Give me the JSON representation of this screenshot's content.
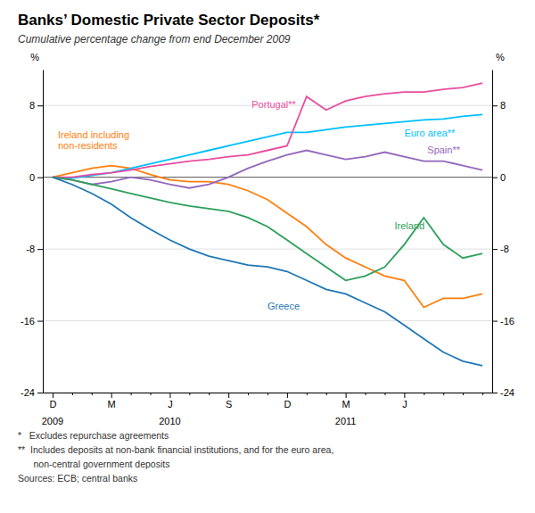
{
  "chart_data": {
    "type": "line",
    "title": "Banks’ Domestic Private Sector Deposits*",
    "subtitle": "Cumulative percentage change from end December 2009",
    "ylabel": "%",
    "y2label": "%",
    "categories": [
      "D",
      null,
      null,
      "M",
      null,
      null,
      "J",
      null,
      null,
      "S",
      null,
      null,
      "D",
      null,
      null,
      "M",
      null,
      null,
      "J",
      null,
      null,
      null,
      null
    ],
    "annotations": [
      {
        "text": "2009",
        "x": 0
      },
      {
        "text": "2010",
        "x": 6
      },
      {
        "text": "2011",
        "x": 15
      }
    ],
    "ylim": [
      -24,
      12
    ],
    "yticks": [
      -24,
      -16,
      -8,
      0,
      8
    ],
    "y2lim": [
      -24,
      12
    ],
    "y2ticks": [
      -24,
      -16,
      -8,
      0,
      8
    ],
    "grid": true,
    "series": [
      {
        "name": "Ireland including\nnon-residents",
        "color": "#ff7f0e",
        "values": [
          0,
          0.5,
          1.0,
          1.3,
          1.0,
          0.3,
          -0.3,
          -0.5,
          -0.5,
          -0.8,
          -1.5,
          -2.5,
          -4.0,
          -5.5,
          -7.5,
          -9.0,
          -10.0,
          -11.0,
          -11.5,
          -14.5,
          -13.5,
          -13.5,
          -13.0
        ]
      },
      {
        "name": "Spain**",
        "color": "#9467bd",
        "values": [
          0,
          -0.3,
          -0.8,
          -0.5,
          0.0,
          -0.3,
          -0.8,
          -1.2,
          -0.8,
          0.0,
          1.0,
          1.8,
          2.5,
          3.0,
          2.5,
          2.0,
          2.3,
          2.8,
          2.3,
          1.8,
          1.8,
          1.3,
          0.8
        ]
      },
      {
        "name": "Euro area**",
        "color": "#00bfff",
        "values": [
          0,
          -0.1,
          0.2,
          0.5,
          1.0,
          1.5,
          2.0,
          2.5,
          3.0,
          3.5,
          4.0,
          4.5,
          5.0,
          5.0,
          5.3,
          5.6,
          5.8,
          6.0,
          6.2,
          6.4,
          6.5,
          6.8,
          7.0
        ]
      },
      {
        "name": "Portugal**",
        "color": "#e84da0",
        "values": [
          0,
          0.0,
          0.3,
          0.5,
          0.8,
          1.2,
          1.5,
          1.8,
          2.0,
          2.3,
          2.5,
          3.0,
          3.5,
          9.0,
          7.5,
          8.5,
          9.0,
          9.3,
          9.5,
          9.5,
          9.8,
          10.0,
          10.5
        ]
      },
      {
        "name": "Ireland",
        "color": "#2ca05a",
        "values": [
          0,
          -0.3,
          -0.8,
          -1.3,
          -1.8,
          -2.3,
          -2.8,
          -3.2,
          -3.5,
          -3.8,
          -4.5,
          -5.5,
          -7.0,
          -8.5,
          -10.0,
          -11.5,
          -11.0,
          -10.0,
          -7.5,
          -4.5,
          -7.5,
          -9.0,
          -8.5
        ]
      },
      {
        "name": "Greece",
        "color": "#1f77b4",
        "values": [
          0,
          -0.8,
          -1.8,
          -3.0,
          -4.5,
          -5.8,
          -7.0,
          -8.0,
          -8.8,
          -9.3,
          -9.8,
          -10.0,
          -10.5,
          -11.5,
          -12.5,
          -13.0,
          -14.0,
          -15.0,
          -16.5,
          -18.0,
          -19.5,
          -20.5,
          -21.0
        ]
      }
    ],
    "footnotes": [
      "*   Excludes repurchase agreements",
      "**  Includes deposits at non-bank financial institutions, and for the euro area,",
      "      non-central government deposits",
      "Sources: ECB; central banks"
    ]
  }
}
